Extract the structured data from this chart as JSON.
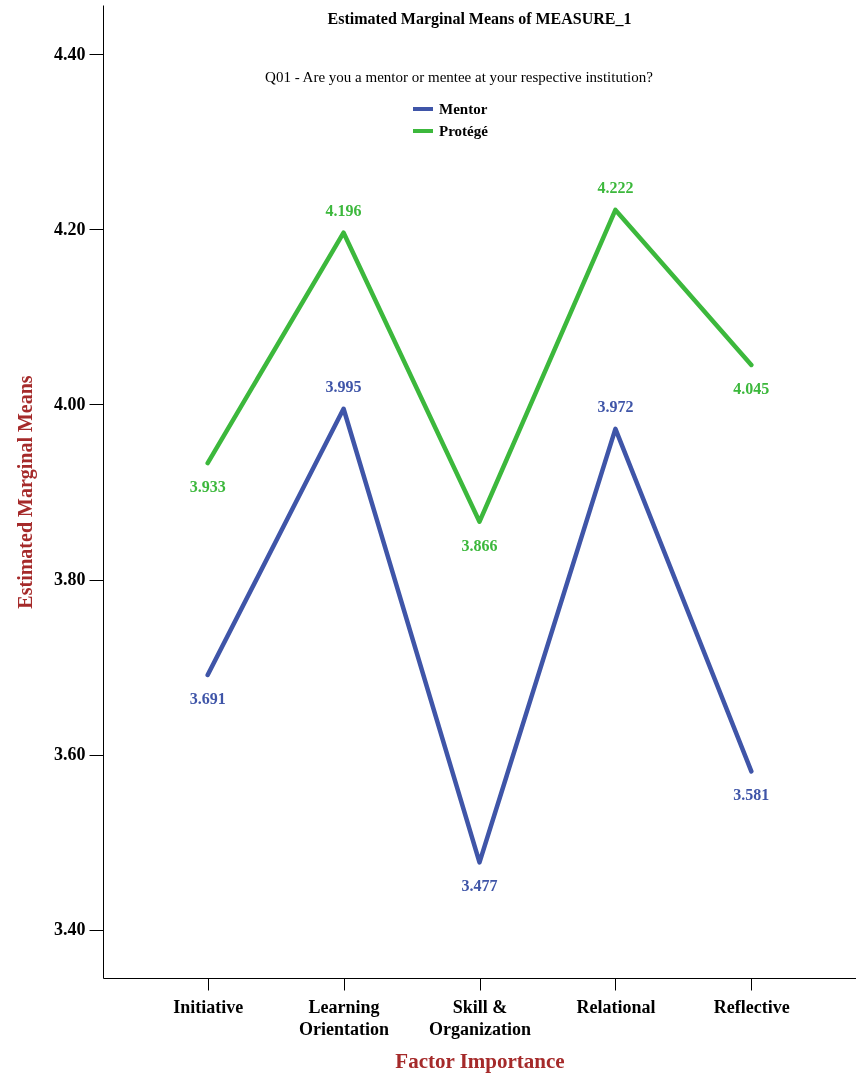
{
  "chart_data": {
    "type": "line",
    "title": "Estimated Marginal Means of MEASURE_1",
    "xlabel": "Factor Importance",
    "ylabel": "Estimated Marginal Means",
    "legend_title": "Q01 - Are you a mentor or mentee at your respective institution?",
    "legend": "top",
    "categories": [
      "Initiative",
      "Learning Orientation",
      "Skill & Organization",
      "Relational",
      "Reflective"
    ],
    "series": [
      {
        "name": "Mentor",
        "color": "#3f55a8",
        "values": [
          3.691,
          3.995,
          3.477,
          3.972,
          3.581
        ]
      },
      {
        "name": "Protégé",
        "color": "#3cb83c",
        "values": [
          3.933,
          4.196,
          3.866,
          4.222,
          4.045
        ]
      }
    ],
    "ylim": [
      3.345,
      4.456
    ],
    "yticks": [
      {
        "value": 3.4,
        "label": "3.40"
      },
      {
        "value": 3.6,
        "label": "3.60"
      },
      {
        "value": 3.8,
        "label": "3.80"
      },
      {
        "value": 4.0,
        "label": "4.00"
      },
      {
        "value": 4.2,
        "label": "4.20"
      },
      {
        "value": 4.4,
        "label": "4.40"
      }
    ],
    "grid": false,
    "data_labels": true,
    "marker": "none",
    "line_style": "solid"
  }
}
